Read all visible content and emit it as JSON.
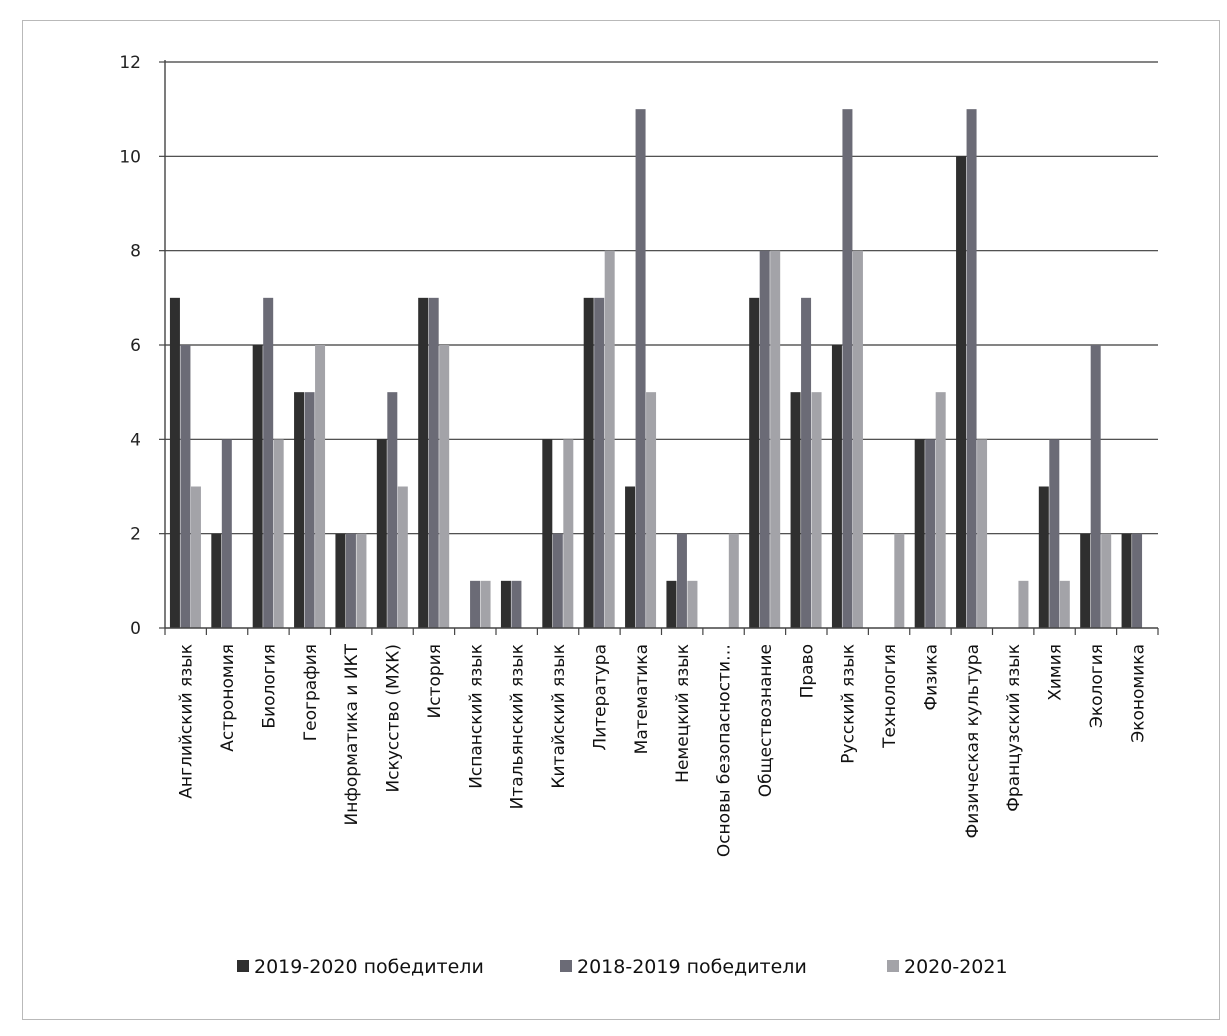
{
  "chart_data": {
    "type": "bar",
    "categories": [
      "Английский язык",
      "Астрономия",
      "Биология",
      "География",
      "Информатика и ИКТ",
      "Искусство (МХК)",
      "История",
      "Испанский язык",
      "Итальянский язык",
      "Китайский язык",
      "Литература",
      "Математика",
      "Немецкий язык",
      "Основы безопасности…",
      "Обществознание",
      "Право",
      "Русский язык",
      "Технология",
      "Физика",
      "Физическая культура",
      "Французский язык",
      "Химия",
      "Экология",
      "Экономика"
    ],
    "series": [
      {
        "name": "2019-2020 победители",
        "color": "#2f2f2f",
        "values": [
          7,
          2,
          6,
          5,
          2,
          4,
          7,
          0,
          1,
          4,
          7,
          3,
          1,
          0,
          7,
          5,
          6,
          0,
          4,
          10,
          0,
          3,
          2,
          2
        ]
      },
      {
        "name": "2018-2019 победители",
        "color": "#6b6b76",
        "values": [
          6,
          4,
          7,
          5,
          2,
          5,
          7,
          1,
          1,
          2,
          7,
          11,
          2,
          0,
          8,
          7,
          11,
          0,
          4,
          11,
          0,
          4,
          6,
          2
        ]
      },
      {
        "name": "2020-2021",
        "color": "#a3a3a8",
        "values": [
          3,
          0,
          4,
          6,
          2,
          3,
          6,
          1,
          0,
          4,
          8,
          5,
          1,
          2,
          8,
          5,
          8,
          2,
          5,
          4,
          1,
          1,
          2,
          0
        ]
      }
    ],
    "yticks": [
      "0",
      "2",
      "4",
      "6",
      "8",
      "10",
      "12"
    ],
    "ylim": [
      0,
      12
    ],
    "grid": true,
    "legend_position": "bottom"
  }
}
